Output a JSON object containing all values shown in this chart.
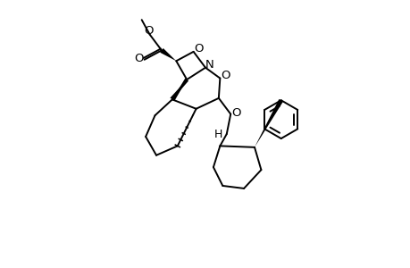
{
  "background": "#ffffff",
  "lw": 1.4,
  "fs": 9.5,
  "xlim": [
    0,
    10
  ],
  "ylim": [
    0,
    10
  ],
  "figsize": [
    4.6,
    3.0
  ],
  "dpi": 100
}
